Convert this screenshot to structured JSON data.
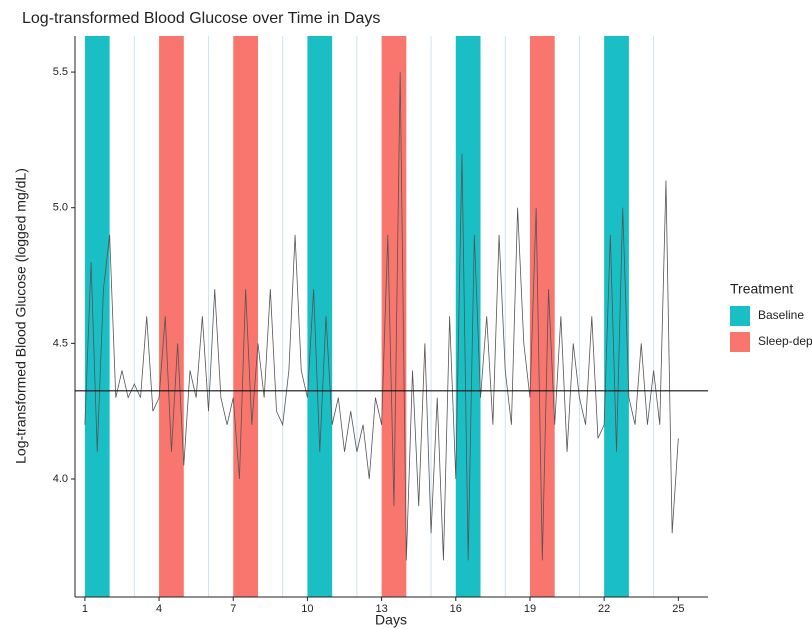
{
  "chart_data": {
    "type": "line",
    "title": "Log-transformed Blood Glucose over Time in Days",
    "x_label": "Days",
    "y_label": "Log-transformed Blood Glucose (logged mg/dL)",
    "xlim": [
      0.6,
      26.2
    ],
    "ylim": [
      3.565,
      5.633
    ],
    "xticks": [
      1,
      4,
      7,
      10,
      13,
      16,
      19,
      22,
      25
    ],
    "yticks": [
      {
        "value": 4,
        "label": "4.0"
      },
      4.5,
      {
        "value": 5,
        "label": "5.0"
      },
      5.5
    ],
    "vlines": [
      3,
      6,
      9,
      12,
      15,
      18,
      21,
      24
    ],
    "hline": 4.325,
    "line_color": "#555555",
    "legend": {
      "title": "Treatment",
      "entries": [
        {
          "label": "Baseline",
          "color": "#19bfc4",
          "spans": [
            [
              1,
              2
            ],
            [
              10,
              11
            ],
            [
              16,
              17
            ],
            [
              22,
              23
            ]
          ]
        },
        {
          "label": "Sleep-dep",
          "color": "#f8766d",
          "spans": [
            [
              4,
              5
            ],
            [
              7,
              8
            ],
            [
              13,
              14
            ],
            [
              19,
              20
            ]
          ]
        }
      ]
    },
    "x": [
      1,
      1.25,
      1.5,
      1.75,
      2,
      2.25,
      2.5,
      2.75,
      3,
      3.25,
      3.5,
      3.75,
      4,
      4.25,
      4.5,
      4.75,
      5,
      5.25,
      5.5,
      5.75,
      6,
      6.25,
      6.5,
      6.75,
      7,
      7.25,
      7.5,
      7.75,
      8,
      8.25,
      8.5,
      8.75,
      9,
      9.25,
      9.5,
      9.75,
      10,
      10.25,
      10.5,
      10.75,
      11,
      11.25,
      11.5,
      11.75,
      12,
      12.25,
      12.5,
      12.75,
      13,
      13.25,
      13.5,
      13.75,
      14,
      14.25,
      14.5,
      14.75,
      15,
      15.25,
      15.5,
      15.75,
      16,
      16.25,
      16.5,
      16.75,
      17,
      17.25,
      17.5,
      17.75,
      18,
      18.25,
      18.5,
      18.75,
      19,
      19.25,
      19.5,
      19.75,
      20,
      20.25,
      20.5,
      20.75,
      21,
      21.25,
      21.5,
      21.75,
      22,
      22.25,
      22.5,
      22.75,
      23,
      23.25,
      23.5,
      23.75,
      24,
      24.25,
      24.5,
      24.75,
      25
    ],
    "values": [
      4.2,
      4.8,
      4.1,
      4.7,
      4.9,
      4.3,
      4.4,
      4.3,
      4.35,
      4.3,
      4.6,
      4.25,
      4.3,
      4.6,
      4.1,
      4.5,
      4.05,
      4.4,
      4.3,
      4.6,
      4.25,
      4.7,
      4.3,
      4.2,
      4.3,
      4.0,
      4.7,
      4.2,
      4.5,
      4.3,
      4.7,
      4.25,
      4.2,
      4.4,
      4.9,
      4.4,
      4.3,
      4.7,
      4.1,
      4.6,
      4.2,
      4.3,
      4.1,
      4.25,
      4.1,
      4.2,
      4.0,
      4.3,
      4.2,
      4.9,
      3.9,
      5.5,
      3.7,
      4.4,
      3.9,
      4.5,
      3.8,
      4.3,
      3.7,
      4.6,
      4.0,
      5.2,
      3.7,
      4.9,
      4.3,
      4.6,
      4.2,
      4.9,
      4.4,
      4.2,
      5.0,
      4.5,
      4.3,
      5.0,
      3.7,
      4.7,
      4.2,
      4.6,
      4.1,
      4.5,
      4.3,
      4.2,
      4.6,
      4.15,
      4.2,
      4.9,
      4.1,
      5.0,
      4.3,
      4.2,
      4.5,
      4.2,
      4.4,
      4.2,
      5.1,
      3.8,
      4.15
    ]
  }
}
